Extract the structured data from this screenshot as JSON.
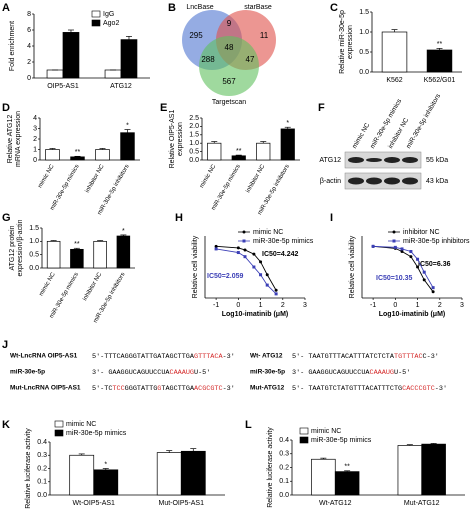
{
  "chart_data": [
    {
      "type": "bar",
      "label": "A",
      "ylabel": [
        "Fold enrichment"
      ],
      "categories": [
        "OIP5-AS1",
        "ATG12"
      ],
      "series": [
        {
          "name": "IgG",
          "color": "#ffffff",
          "values": [
            1,
            1
          ],
          "errors": [
            0,
            0
          ]
        },
        {
          "name": "Ago2",
          "color": "#000000",
          "values": [
            5.7,
            4.8
          ],
          "errors": [
            0.3,
            0.4
          ]
        }
      ],
      "ylim": [
        0,
        8
      ],
      "yticks": [
        0,
        2,
        4,
        6,
        8
      ]
    },
    {
      "type": "bar",
      "label": "C",
      "ylabel": [
        "Relative miR-30e-5p",
        "expression"
      ],
      "categories": [
        "K562",
        "K562/G01"
      ],
      "values": [
        1.0,
        0.55
      ],
      "errors": [
        0.06,
        0.04
      ],
      "significance": [
        null,
        "**"
      ],
      "colors": [
        "#ffffff",
        "#000000"
      ],
      "ylim": [
        0,
        1.5
      ],
      "yticks": [
        {
          "value": 0,
          "label": "0.0"
        },
        {
          "value": 0.5,
          "label": "0.5"
        },
        {
          "value": 1,
          "label": "1.0"
        },
        {
          "value": 1.5,
          "label": "1.5"
        }
      ]
    },
    {
      "type": "bar",
      "label": "D",
      "ylabel": [
        "Relative ATG12",
        "mRNA expression"
      ],
      "categories": [
        "mimic NC",
        "miR-30e-5p mimics",
        "inhibitor NC",
        "miR-30e-5p inhibitors"
      ],
      "values": [
        1.0,
        0.3,
        1.0,
        2.6
      ],
      "errors": [
        0.1,
        0.05,
        0.1,
        0.3
      ],
      "significance": [
        null,
        "**",
        null,
        "*"
      ],
      "colors": [
        "#ffffff",
        "#000000",
        "#ffffff",
        "#000000"
      ],
      "ylim": [
        0,
        4
      ],
      "yticks": [
        0,
        1,
        2,
        3,
        4
      ]
    },
    {
      "type": "bar",
      "label": "E",
      "ylabel": [
        "Relative OIP5-AS1",
        "expression"
      ],
      "categories": [
        "mimic NC",
        "miR-30e-5p mimics",
        "inhibitor NC",
        "miR-30e-5p inhibitors"
      ],
      "values": [
        1.0,
        0.25,
        1.0,
        1.85
      ],
      "errors": [
        0.1,
        0.04,
        0.1,
        0.1
      ],
      "significance": [
        null,
        "**",
        null,
        "*"
      ],
      "colors": [
        "#ffffff",
        "#000000",
        "#ffffff",
        "#000000"
      ],
      "ylim": [
        0,
        2.5
      ],
      "yticks": [
        {
          "value": 0,
          "label": "0.0"
        },
        {
          "value": 0.5,
          "label": "0.5"
        },
        {
          "value": 1,
          "label": "1.0"
        },
        {
          "value": 1.5,
          "label": "1.5"
        },
        {
          "value": 2,
          "label": "2.0"
        },
        {
          "value": 2.5,
          "label": "2.5"
        }
      ]
    },
    {
      "type": "bar",
      "label": "G",
      "ylabel": [
        "ATG12 protein",
        "expression/β-actin"
      ],
      "categories": [
        "mimic NC",
        "miR-30e-5p mimics",
        "inhibitor NC",
        "miR-30e-5p inhibitors"
      ],
      "values": [
        1.0,
        0.7,
        1.0,
        1.2
      ],
      "errors": [
        0.03,
        0.04,
        0.03,
        0.04
      ],
      "significance": [
        null,
        "**",
        null,
        "*"
      ],
      "colors": [
        "#ffffff",
        "#000000",
        "#ffffff",
        "#000000"
      ],
      "ylim": [
        0,
        1.5
      ],
      "yticks": [
        {
          "value": 0,
          "label": "0.0"
        },
        {
          "value": 0.5,
          "label": "0.5"
        },
        {
          "value": 1,
          "label": "1.0"
        },
        {
          "value": 1.5,
          "label": "1.5"
        }
      ]
    },
    {
      "type": "line",
      "label": "H",
      "ylabel": [
        "Relative cell viability"
      ],
      "xlabel": "Log10-imatinib (μM)",
      "x": [
        -1,
        0,
        0.3,
        0.7,
        1,
        1.3,
        1.7
      ],
      "series": [
        {
          "name": "mimic NC",
          "color": "#000000",
          "marker": "circle",
          "annotation": "IC50=4.242",
          "values": [
            1.0,
            0.97,
            0.93,
            0.85,
            0.7,
            0.45,
            0.15
          ]
        },
        {
          "name": "miR-30e-5p mimics",
          "color": "#3b3fb6",
          "marker": "square",
          "annotation": "IC50=2.059",
          "values": [
            0.95,
            0.88,
            0.8,
            0.6,
            0.45,
            0.25,
            0.08
          ]
        }
      ],
      "xlim": [
        -1.5,
        3
      ],
      "xticks": [
        -1,
        0,
        1,
        2,
        3
      ],
      "ylim": [
        0,
        1.2
      ]
    },
    {
      "type": "line",
      "label": "I",
      "ylabel": [
        "Relative cell viability"
      ],
      "xlabel": "Log10-imatinib (μM)",
      "x": [
        -1,
        0,
        0.3,
        0.7,
        1,
        1.3,
        1.7
      ],
      "series": [
        {
          "name": "inhibitor NC",
          "color": "#000000",
          "marker": "circle",
          "annotation": "IC50=6.36",
          "values": [
            1.0,
            0.96,
            0.9,
            0.8,
            0.6,
            0.35,
            0.12
          ]
        },
        {
          "name": "miR-30e-5p inhibitors",
          "color": "#3b3fb6",
          "marker": "square",
          "annotation": "IC50=10.35",
          "values": [
            1.0,
            0.98,
            0.95,
            0.9,
            0.75,
            0.5,
            0.2
          ]
        }
      ],
      "xlim": [
        -1.5,
        3
      ],
      "xticks": [
        -1,
        0,
        1,
        2,
        3
      ],
      "ylim": [
        0,
        1.2
      ]
    },
    {
      "type": "bar",
      "label": "K",
      "ylabel": [
        "Relative luciferase activity"
      ],
      "categories": [
        "Wt-OIP5-AS1",
        "Mut-OIP5-AS1"
      ],
      "series": [
        {
          "name": "mimic NC",
          "color": "#ffffff",
          "values": [
            0.3,
            0.32
          ],
          "errors": [
            0.01,
            0.015
          ]
        },
        {
          "name": "miR-30e-5p mimics",
          "color": "#000000",
          "values": [
            0.19,
            0.33
          ],
          "errors": [
            0.01,
            0.02
          ],
          "significance": [
            "*",
            null
          ]
        }
      ],
      "ylim": [
        0,
        0.4
      ],
      "yticks": [
        {
          "value": 0,
          "label": "0.0"
        },
        0.1,
        0.2,
        0.3,
        0.4
      ]
    },
    {
      "type": "bar",
      "label": "L",
      "ylabel": [
        "Relative luciferase activity"
      ],
      "categories": [
        "Wt-ATG12",
        "Mut-ATG12"
      ],
      "series": [
        {
          "name": "mimic NC",
          "color": "#ffffff",
          "values": [
            0.26,
            0.36
          ],
          "errors": [
            0.008,
            0.006
          ]
        },
        {
          "name": "miR-30e-5p mimics",
          "color": "#000000",
          "values": [
            0.17,
            0.37
          ],
          "errors": [
            0.006,
            0.005
          ],
          "significance": [
            "**",
            null
          ]
        }
      ],
      "ylim": [
        0,
        0.4
      ],
      "yticks": [
        {
          "value": 0,
          "label": "0.0"
        },
        0.1,
        0.2,
        0.3,
        0.4
      ]
    }
  ],
  "venn": {
    "label": "B",
    "sets": [
      "LncBase",
      "starBase",
      "Targetscan"
    ],
    "counts": [
      "295",
      "9",
      "11",
      "288",
      "48",
      "47",
      "567"
    ]
  },
  "blot": {
    "label": "F",
    "lanes": [
      "mimic NC",
      "miR-30e-5p mimics",
      "inhibitor NC",
      "miR-30e-5p inhibitors"
    ],
    "bands": [
      {
        "name": "ATG12",
        "size": "55 kDa"
      },
      {
        "name": "β-actin",
        "size": "43 kDa"
      }
    ]
  },
  "sequences": {
    "label": "J",
    "rows": [
      {
        "name": "Wt-LncRNA OIP5-AS1",
        "segments": [
          {
            "text": "5'-TTTCAGGGTATTGATAGCTTGA"
          },
          {
            "text": "GTTTACA",
            "highlight": true
          },
          {
            "text": "-3'"
          }
        ]
      },
      {
        "name": "miR-30e-5p",
        "segments": [
          {
            "text": "3'- GAAGGUCAGUUCCUA"
          },
          {
            "text": "CAAAUG",
            "highlight": true
          },
          {
            "text": "U-5'"
          }
        ]
      },
      {
        "name": "Mut-LncRNA OIP5-AS1",
        "segments": [
          {
            "text": "5'-TC"
          },
          {
            "text": "TCC",
            "highlight": true
          },
          {
            "text": "GGGTATTG"
          },
          {
            "text": "G",
            "highlight": true
          },
          {
            "text": "TAGCTTGA"
          },
          {
            "text": "ACGCGTC",
            "highlight": true
          },
          {
            "text": "-3'"
          }
        ]
      },
      {
        "name": "Wt- ATG12",
        "segments": [
          {
            "text": "5'- TAATGTTTACATTTATCTCTA"
          },
          {
            "text": "TGTTTAC",
            "highlight": true
          },
          {
            "text": "C-3'"
          }
        ]
      },
      {
        "name": "miR-30e-5p",
        "segments": [
          {
            "text": "3'- GAAGGUCAGUUCCUA"
          },
          {
            "text": "CAAAUG",
            "highlight": true
          },
          {
            "text": "U-5'"
          }
        ]
      },
      {
        "name": "Mut-ATG12",
        "segments": [
          {
            "text": "5'- TAATGTCTATGTTTACATTTCTG"
          },
          {
            "text": "CACCCGTC",
            "highlight": true
          },
          {
            "text": "-3'"
          }
        ]
      }
    ]
  }
}
